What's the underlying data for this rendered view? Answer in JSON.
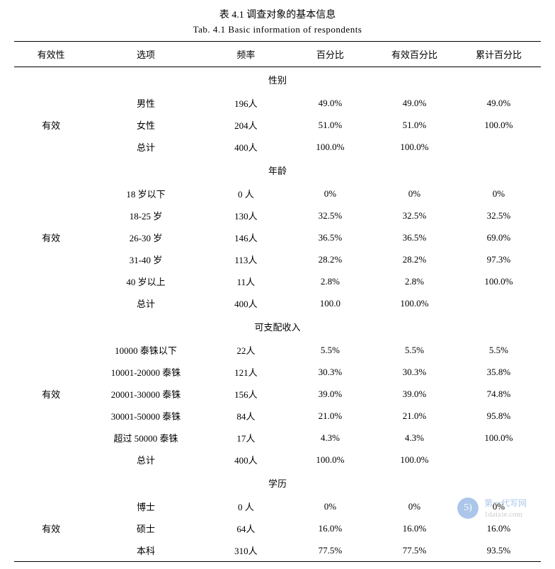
{
  "title_cn": "表 4.1  调查对象的基本信息",
  "title_en": "Tab. 4.1  Basic information of respondents",
  "headers": {
    "validity": "有效性",
    "option": "选项",
    "frequency": "频率",
    "percent": "百分比",
    "valid_percent": "有效百分比",
    "cum_percent": "累计百分比"
  },
  "sections": [
    {
      "name": "性别",
      "validity_label": "有效",
      "rows": [
        {
          "option": "男性",
          "freq": "196人",
          "pct": "49.0%",
          "vpct": "49.0%",
          "cpct": "49.0%"
        },
        {
          "option": "女性",
          "freq": "204人",
          "pct": "51.0%",
          "vpct": "51.0%",
          "cpct": "100.0%"
        },
        {
          "option": "总计",
          "freq": "400人",
          "pct": "100.0%",
          "vpct": "100.0%",
          "cpct": ""
        }
      ]
    },
    {
      "name": "年龄",
      "validity_label": "有效",
      "rows": [
        {
          "option": "18 岁以下",
          "freq": "0 人",
          "pct": "0%",
          "vpct": "0%",
          "cpct": "0%"
        },
        {
          "option": "18-25 岁",
          "freq": "130人",
          "pct": "32.5%",
          "vpct": "32.5%",
          "cpct": "32.5%"
        },
        {
          "option": "26-30 岁",
          "freq": "146人",
          "pct": "36.5%",
          "vpct": "36.5%",
          "cpct": "69.0%"
        },
        {
          "option": "31-40 岁",
          "freq": "113人",
          "pct": "28.2%",
          "vpct": "28.2%",
          "cpct": "97.3%"
        },
        {
          "option": "40 岁以上",
          "freq": "11人",
          "pct": "2.8%",
          "vpct": "2.8%",
          "cpct": "100.0%"
        },
        {
          "option": "总计",
          "freq": "400人",
          "pct": "100.0",
          "vpct": "100.0%",
          "cpct": ""
        }
      ]
    },
    {
      "name": "可支配收入",
      "validity_label": "有效",
      "rows": [
        {
          "option": "10000 泰铢以下",
          "freq": "22人",
          "pct": "5.5%",
          "vpct": "5.5%",
          "cpct": "5.5%"
        },
        {
          "option": "10001-20000 泰铢",
          "freq": "121人",
          "pct": "30.3%",
          "vpct": "30.3%",
          "cpct": "35.8%"
        },
        {
          "option": "20001-30000 泰铢",
          "freq": "156人",
          "pct": "39.0%",
          "vpct": "39.0%",
          "cpct": "74.8%"
        },
        {
          "option": "30001-50000 泰铢",
          "freq": "84人",
          "pct": "21.0%",
          "vpct": "21.0%",
          "cpct": "95.8%"
        },
        {
          "option": "超过 50000 泰铢",
          "freq": "17人",
          "pct": "4.3%",
          "vpct": "4.3%",
          "cpct": "100.0%"
        },
        {
          "option": "总计",
          "freq": "400人",
          "pct": "100.0%",
          "vpct": "100.0%",
          "cpct": ""
        }
      ]
    },
    {
      "name": "学历",
      "validity_label": "有效",
      "rows": [
        {
          "option": "博士",
          "freq": "0 人",
          "pct": "0%",
          "vpct": "0%",
          "cpct": "0%"
        },
        {
          "option": "硕士",
          "freq": "64人",
          "pct": "16.0%",
          "vpct": "16.0%",
          "cpct": "16.0%"
        },
        {
          "option": "本科",
          "freq": "310人",
          "pct": "77.5%",
          "vpct": "77.5%",
          "cpct": "93.5%"
        }
      ]
    }
  ],
  "watermark": {
    "icon_text": "5)",
    "line1": "第一代写网",
    "line2": "1daixie.com"
  }
}
